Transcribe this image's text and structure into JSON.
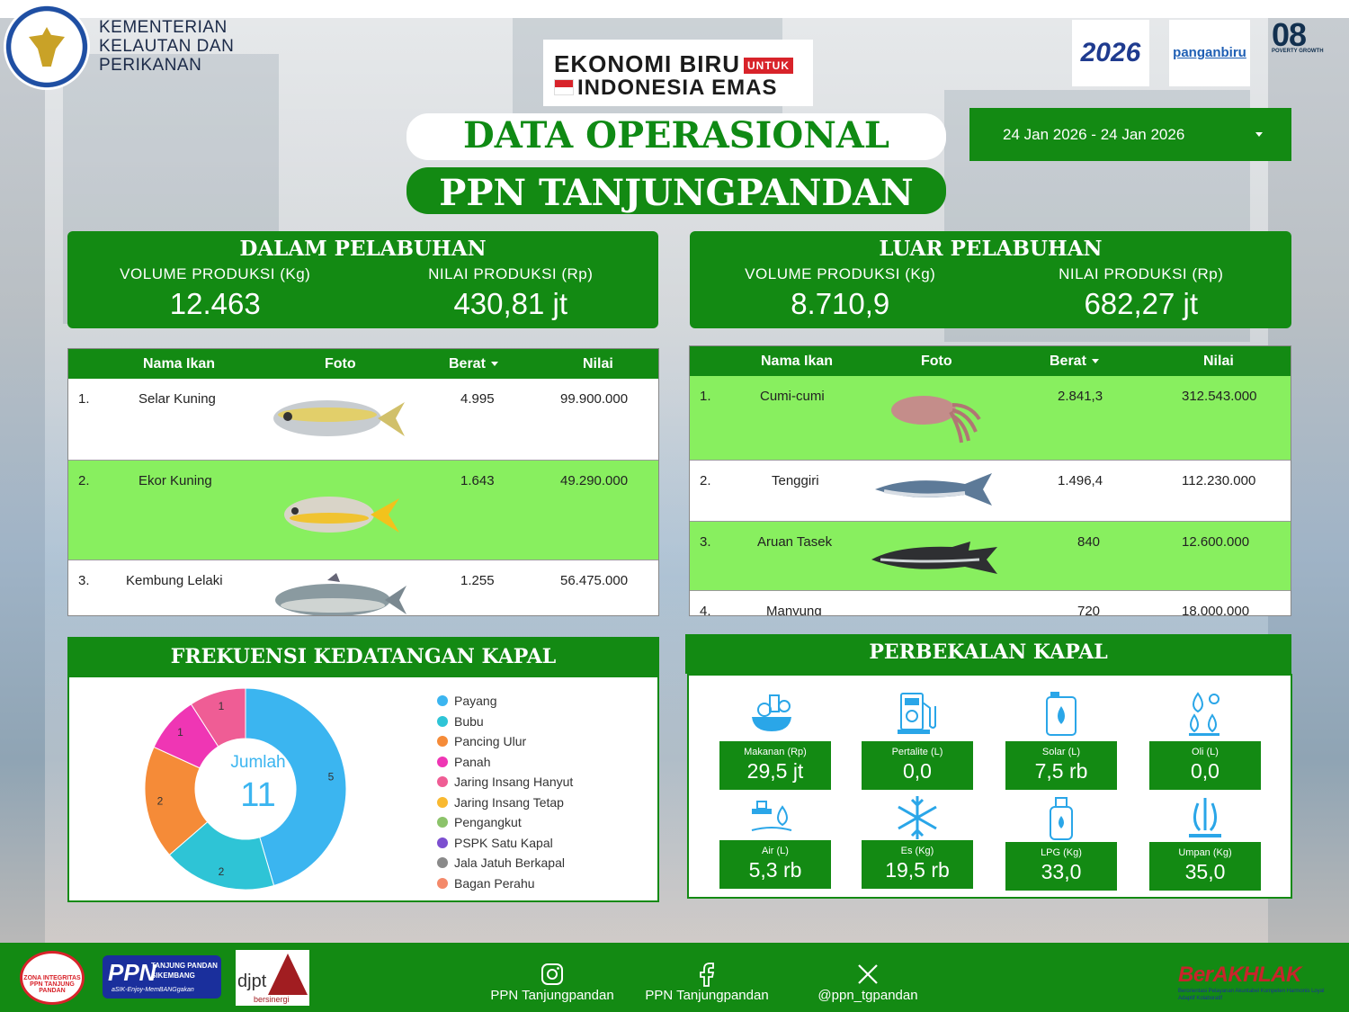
{
  "header": {
    "ministry_lines": [
      "KEMENTERIAN",
      "KELAUTAN DAN",
      "PERIKANAN"
    ],
    "eb_line1": "EKONOMI BIRU",
    "eb_untuk": "UNTUK",
    "eb_line2": "INDONESIA EMAS",
    "kkp_logo_text": "2026",
    "pangan_logo_text": "panganbiru",
    "o8_text": "08",
    "o8_sub": "POVERTY  GROWTH",
    "title": "DATA OPERASIONAL",
    "subtitle": "PPN TANJUNGPANDAN",
    "date_range": "24 Jan 2026 - 24 Jan 2026"
  },
  "dalam": {
    "heading": "DALAM PELABUHAN",
    "volume_label": "VOLUME PRODUKSI (Kg)",
    "volume_value": "12.463",
    "nilai_label": "NILAI PRODUKSI (Rp)",
    "nilai_value": "430,81 jt"
  },
  "luar": {
    "heading": "LUAR PELABUHAN",
    "volume_label": "VOLUME PRODUKSI (Kg)",
    "volume_value": "8.710,9",
    "nilai_label": "NILAI PRODUKSI (Rp)",
    "nilai_value": "682,27 jt"
  },
  "table_columns": {
    "nama": "Nama Ikan",
    "foto": "Foto",
    "berat": "Berat",
    "nilai": "Nilai"
  },
  "dalam_rows": [
    {
      "no": "1.",
      "nama": "Selar Kuning",
      "berat": "4.995",
      "nilai": "99.900.000"
    },
    {
      "no": "2.",
      "nama": "Ekor Kuning",
      "berat": "1.643",
      "nilai": "49.290.000"
    },
    {
      "no": "3.",
      "nama": "Kembung Lelaki",
      "berat": "1.255",
      "nilai": "56.475.000"
    }
  ],
  "luar_rows": [
    {
      "no": "1.",
      "nama": "Cumi-cumi",
      "berat": "2.841,3",
      "nilai": "312.543.000"
    },
    {
      "no": "2.",
      "nama": "Tenggiri",
      "berat": "1.496,4",
      "nilai": "112.230.000"
    },
    {
      "no": "3.",
      "nama": "Aruan Tasek",
      "berat": "840",
      "nilai": "12.600.000"
    },
    {
      "no": "4.",
      "nama": "Manyung",
      "berat": "720",
      "nilai": "18.000.000"
    }
  ],
  "frekuensi": {
    "heading": "FREKUENSI KEDATANGAN KAPAL",
    "center_label": "Jumlah",
    "center_value": "11"
  },
  "chart_data": {
    "type": "pie",
    "donut": true,
    "categories": [
      "Payang",
      "Bubu",
      "Pancing Ulur",
      "Panah",
      "Jaring Insang Hanyut",
      "Jaring Insang Tetap",
      "Pengangkut",
      "PSPK Satu Kapal",
      "Jala Jatuh Berkapal",
      "Bagan Perahu"
    ],
    "values": [
      5,
      2,
      2,
      1,
      1,
      0,
      0,
      0,
      0,
      0
    ],
    "colors": [
      "#3bb5f0",
      "#2ec4d6",
      "#f58b38",
      "#ef36b4",
      "#ef5d95",
      "#f9b930",
      "#8cc36a",
      "#7c4fd0",
      "#8a8a8a",
      "#f4896a"
    ],
    "legend_position": "right"
  },
  "perbekalan": {
    "heading": "PERBEKALAN KAPAL",
    "items": [
      {
        "label": "Makanan (Rp)",
        "value": "29,5 jt",
        "icon": "food-icon"
      },
      {
        "label": "Pertalite (L)",
        "value": "0,0",
        "icon": "fuel-pump-icon"
      },
      {
        "label": "Solar (L)",
        "value": "7,5 rb",
        "icon": "jerrycan-icon"
      },
      {
        "label": "Oli (L)",
        "value": "0,0",
        "icon": "oil-drop-icon"
      },
      {
        "label": "Air (L)",
        "value": "5,3 rb",
        "icon": "water-tap-icon"
      },
      {
        "label": "Es (Kg)",
        "value": "19,5 rb",
        "icon": "snowflake-icon"
      },
      {
        "label": "LPG (Kg)",
        "value": "33,0",
        "icon": "gas-cylinder-icon"
      },
      {
        "label": "Umpan (Kg)",
        "value": "35,0",
        "icon": "shrimp-icon"
      }
    ]
  },
  "footer": {
    "zona_text": "ZONA INTEGRITAS",
    "zona_sub": "PPN TANJUNG PANDAN",
    "ppn_big": "PPN",
    "ppn_small1": "TANJUNG PANDAN",
    "ppn_small2": "SIKEMBANG",
    "ppn_tag": "aSIK-Enjoy-MemBANGgakan",
    "djpt": "djpt",
    "djpt_sub": "bersinergi",
    "instagram": "PPN Tanjungpandan",
    "facebook": "PPN Tanjungpandan",
    "x": "@ppn_tgpandan",
    "berakhlak": "BerAKHLAK",
    "berakhlak_sub": "Berorientasi Pelayanan Akuntabel Kompeten Harmonis Loyal Adaptif Kolaboratif"
  }
}
